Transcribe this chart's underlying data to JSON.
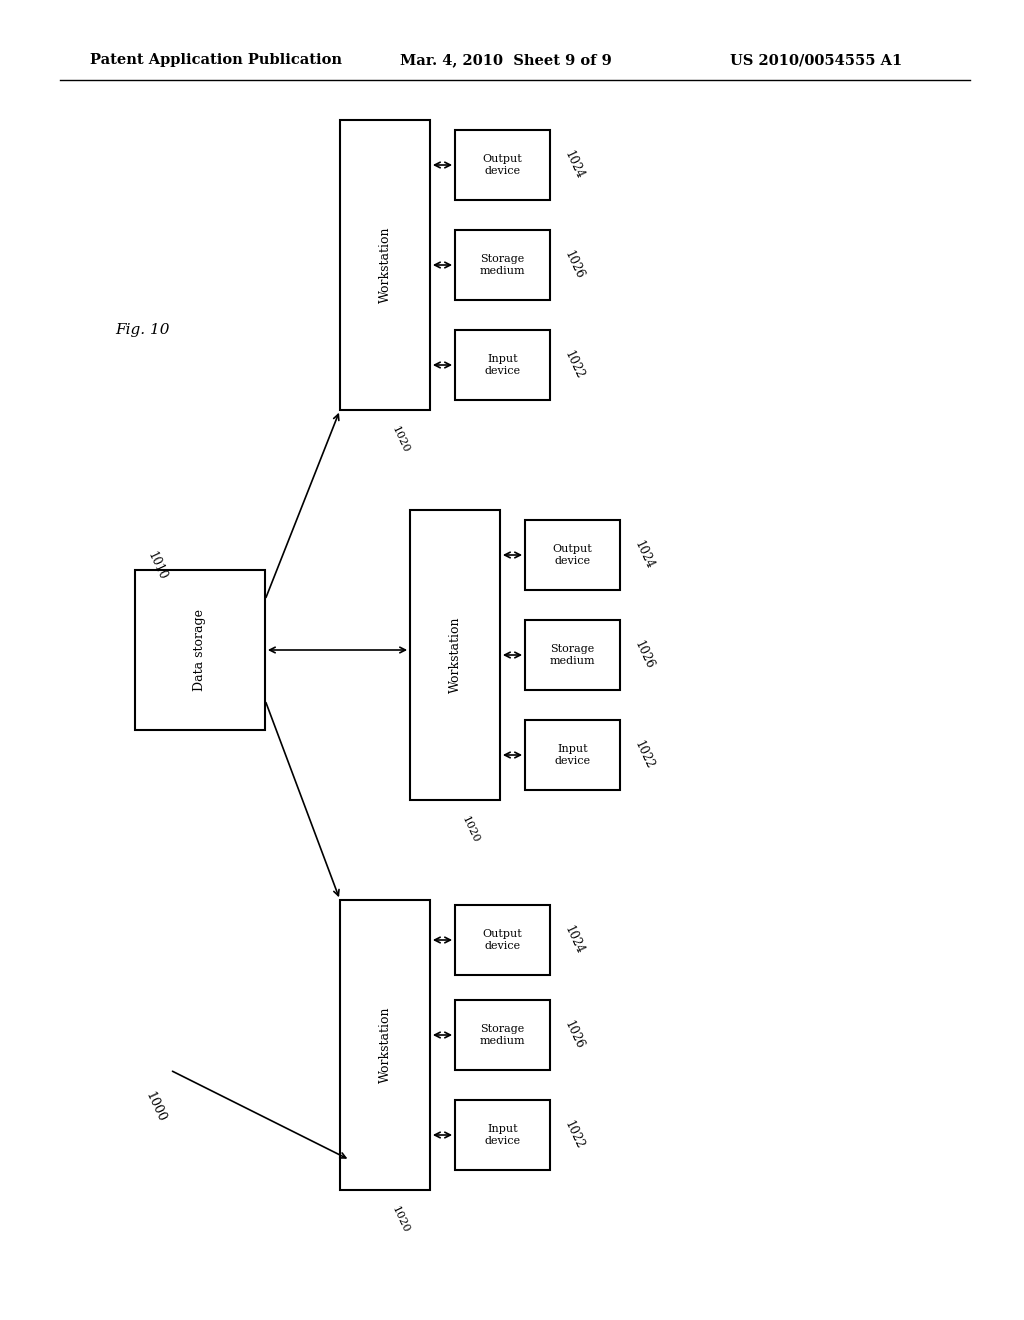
{
  "header_left": "Patent Application Publication",
  "header_mid": "Mar. 4, 2010  Sheet 9 of 9",
  "header_right": "US 2010/0054555 A1",
  "fig_label": "Fig. 10",
  "system_label": "1000",
  "data_storage_label": "Data storage",
  "data_storage_id": "1010",
  "workstation_label": "Workstation",
  "workstation_ids": [
    "1020",
    "1020",
    "1020"
  ],
  "output_label": "Output\ndevice",
  "output_id": "1024",
  "storage_medium_label": "Storage\nmedium",
  "storage_medium_id": "1026",
  "input_label": "Input\ndevice",
  "input_id": "1022",
  "background": "#ffffff",
  "box_edge": "#000000",
  "text_color": "#000000"
}
